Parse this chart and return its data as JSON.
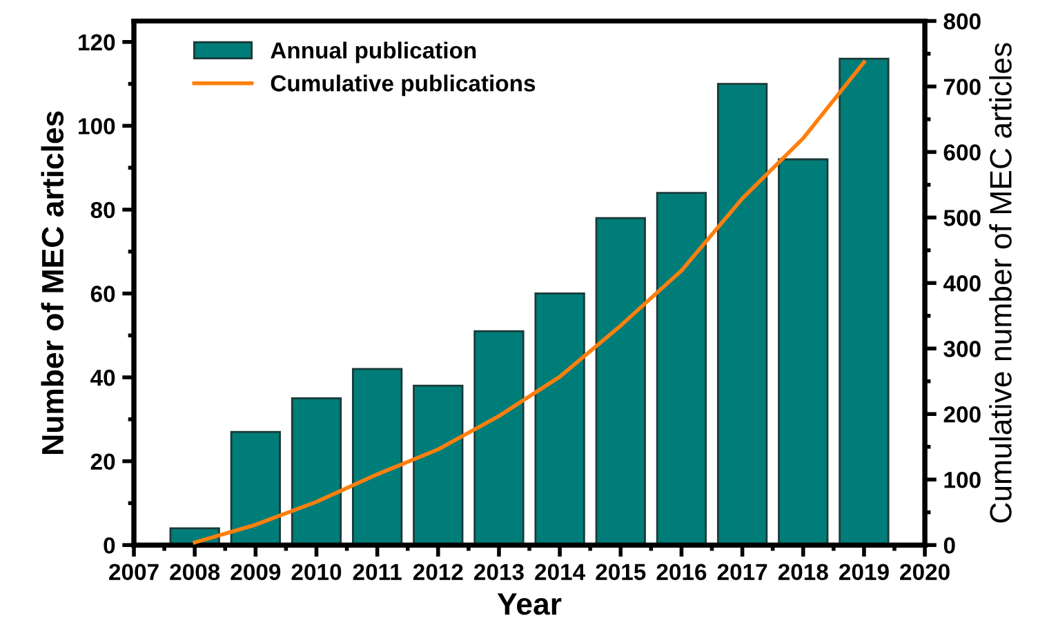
{
  "chart_data": {
    "type": "bar",
    "xlabel": "Year",
    "ylabel": "Number of MEC articles",
    "y2label": "Cumulative number of MEC articles",
    "x": [
      2008,
      2009,
      2010,
      2011,
      2012,
      2013,
      2014,
      2015,
      2016,
      2017,
      2018,
      2019
    ],
    "series": [
      {
        "name": "Annual publication",
        "color": "#007d78",
        "values": [
          4,
          27,
          35,
          42,
          38,
          51,
          60,
          78,
          84,
          110,
          92,
          116
        ]
      },
      {
        "name": "Cumulative publications",
        "type": "line",
        "axis": "y2",
        "color": "#ff7f0e",
        "values": [
          4,
          31,
          66,
          108,
          146,
          197,
          257,
          335,
          419,
          529,
          621,
          737
        ]
      }
    ],
    "xlim": [
      2007,
      2020
    ],
    "xticks": [
      2007,
      2008,
      2009,
      2010,
      2011,
      2012,
      2013,
      2014,
      2015,
      2016,
      2017,
      2018,
      2019,
      2020
    ],
    "ylim": [
      0,
      125
    ],
    "yticks": [
      0,
      20,
      40,
      60,
      80,
      100,
      120
    ],
    "y2lim": [
      0,
      800
    ],
    "y2ticks": [
      0,
      100,
      200,
      300,
      400,
      500,
      600,
      700,
      800
    ],
    "legend": "top left",
    "grid": false,
    "marker": "none",
    "line_style": "solid"
  }
}
